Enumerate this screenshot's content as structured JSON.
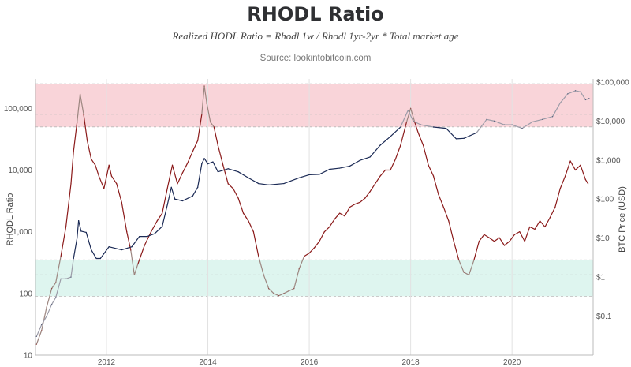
{
  "chart_data": {
    "type": "line",
    "title": "RHODL Ratio",
    "subtitle": "Realized HODL Ratio = Rhodl 1w / Rhodl 1yr-2yr * Total market age",
    "source": "Source: lookintobitcoin.com",
    "ylabel_left": "RHODL Ratio",
    "ylabel_right": "BTC Price (USD)",
    "x_ticks": [
      "2012",
      "2014",
      "2016",
      "2018",
      "2020"
    ],
    "x_range": [
      2010.6,
      2021.6
    ],
    "left_axis": {
      "scale": "log",
      "ylim": [
        10,
        300000
      ],
      "ticks": [
        10,
        100,
        1000,
        10000,
        100000
      ],
      "tick_labels": [
        "10",
        "100",
        "1,000",
        "10,000",
        "100,000"
      ]
    },
    "right_axis": {
      "scale": "log",
      "ylim": [
        0.01,
        120000
      ],
      "ticks": [
        0.1,
        1,
        10,
        100,
        1000,
        10000,
        100000
      ],
      "tick_labels": [
        "$0.1",
        "$1",
        "$10",
        "$100",
        "$1,000",
        "$10,000",
        "$100,000"
      ]
    },
    "bands": [
      {
        "name": "overvalued",
        "y_from": 50000,
        "y_to": 250000,
        "color": "#f8cdd2"
      },
      {
        "name": "undervalued",
        "y_from": 90,
        "y_to": 350,
        "color": "#d8f3ec"
      }
    ],
    "band_lines": [
      50000,
      80000,
      250000,
      90,
      200,
      350
    ],
    "series": [
      {
        "role": "rhodl",
        "axis": "left",
        "color_high": "#8b1a1a",
        "color_low": "#9c8680",
        "points": [
          [
            2010.62,
            15
          ],
          [
            2010.72,
            25
          ],
          [
            2010.82,
            60
          ],
          [
            2010.92,
            120
          ],
          [
            2011.0,
            150
          ],
          [
            2011.1,
            400
          ],
          [
            2011.2,
            1200
          ],
          [
            2011.3,
            6000
          ],
          [
            2011.35,
            20000
          ],
          [
            2011.42,
            60000
          ],
          [
            2011.48,
            170000
          ],
          [
            2011.55,
            80000
          ],
          [
            2011.62,
            30000
          ],
          [
            2011.7,
            15000
          ],
          [
            2011.78,
            12000
          ],
          [
            2011.85,
            8000
          ],
          [
            2011.95,
            5000
          ],
          [
            2012.05,
            12000
          ],
          [
            2012.1,
            8000
          ],
          [
            2012.2,
            6000
          ],
          [
            2012.3,
            3000
          ],
          [
            2012.4,
            1000
          ],
          [
            2012.48,
            500
          ],
          [
            2012.55,
            200
          ],
          [
            2012.62,
            300
          ],
          [
            2012.75,
            600
          ],
          [
            2012.88,
            1000
          ],
          [
            2013.0,
            1500
          ],
          [
            2013.1,
            2000
          ],
          [
            2013.2,
            5000
          ],
          [
            2013.3,
            12000
          ],
          [
            2013.4,
            6000
          ],
          [
            2013.5,
            9000
          ],
          [
            2013.6,
            13000
          ],
          [
            2013.7,
            20000
          ],
          [
            2013.8,
            30000
          ],
          [
            2013.88,
            80000
          ],
          [
            2013.93,
            230000
          ],
          [
            2013.98,
            120000
          ],
          [
            2014.05,
            60000
          ],
          [
            2014.12,
            50000
          ],
          [
            2014.2,
            25000
          ],
          [
            2014.3,
            12000
          ],
          [
            2014.4,
            6000
          ],
          [
            2014.5,
            5000
          ],
          [
            2014.6,
            3500
          ],
          [
            2014.7,
            2000
          ],
          [
            2014.8,
            1500
          ],
          [
            2014.9,
            1000
          ],
          [
            2015.0,
            400
          ],
          [
            2015.1,
            200
          ],
          [
            2015.2,
            120
          ],
          [
            2015.3,
            100
          ],
          [
            2015.4,
            92
          ],
          [
            2015.5,
            100
          ],
          [
            2015.6,
            110
          ],
          [
            2015.7,
            120
          ],
          [
            2015.8,
            250
          ],
          [
            2015.9,
            400
          ],
          [
            2016.0,
            450
          ],
          [
            2016.1,
            550
          ],
          [
            2016.2,
            700
          ],
          [
            2016.3,
            1000
          ],
          [
            2016.4,
            1200
          ],
          [
            2016.5,
            1600
          ],
          [
            2016.6,
            2000
          ],
          [
            2016.7,
            1800
          ],
          [
            2016.8,
            2500
          ],
          [
            2016.9,
            2800
          ],
          [
            2017.0,
            3000
          ],
          [
            2017.1,
            3500
          ],
          [
            2017.2,
            4500
          ],
          [
            2017.3,
            6000
          ],
          [
            2017.4,
            8000
          ],
          [
            2017.5,
            10000
          ],
          [
            2017.6,
            10000
          ],
          [
            2017.7,
            15000
          ],
          [
            2017.8,
            25000
          ],
          [
            2017.92,
            60000
          ],
          [
            2018.0,
            100000
          ],
          [
            2018.08,
            60000
          ],
          [
            2018.15,
            40000
          ],
          [
            2018.25,
            25000
          ],
          [
            2018.35,
            12000
          ],
          [
            2018.45,
            8000
          ],
          [
            2018.55,
            4000
          ],
          [
            2018.65,
            2500
          ],
          [
            2018.75,
            1500
          ],
          [
            2018.85,
            700
          ],
          [
            2018.95,
            350
          ],
          [
            2019.05,
            220
          ],
          [
            2019.15,
            200
          ],
          [
            2019.25,
            350
          ],
          [
            2019.35,
            700
          ],
          [
            2019.45,
            900
          ],
          [
            2019.55,
            800
          ],
          [
            2019.65,
            700
          ],
          [
            2019.75,
            800
          ],
          [
            2019.85,
            600
          ],
          [
            2019.95,
            700
          ],
          [
            2020.05,
            900
          ],
          [
            2020.15,
            1000
          ],
          [
            2020.25,
            700
          ],
          [
            2020.35,
            1200
          ],
          [
            2020.45,
            1100
          ],
          [
            2020.55,
            1500
          ],
          [
            2020.65,
            1200
          ],
          [
            2020.75,
            1700
          ],
          [
            2020.85,
            2500
          ],
          [
            2020.95,
            5000
          ],
          [
            2021.05,
            8000
          ],
          [
            2021.15,
            14000
          ],
          [
            2021.25,
            10000
          ],
          [
            2021.35,
            12000
          ],
          [
            2021.45,
            7000
          ],
          [
            2021.5,
            6000
          ]
        ]
      },
      {
        "role": "price",
        "axis": "right",
        "color_high": "#1b2a55",
        "color_low": "#9c9ca8",
        "points": [
          [
            2010.62,
            0.03
          ],
          [
            2010.72,
            0.06
          ],
          [
            2010.82,
            0.1
          ],
          [
            2010.92,
            0.2
          ],
          [
            2011.0,
            0.3
          ],
          [
            2011.1,
            0.9
          ],
          [
            2011.2,
            0.9
          ],
          [
            2011.3,
            1
          ],
          [
            2011.35,
            3
          ],
          [
            2011.42,
            10
          ],
          [
            2011.45,
            28
          ],
          [
            2011.5,
            15
          ],
          [
            2011.6,
            14
          ],
          [
            2011.7,
            5
          ],
          [
            2011.8,
            3
          ],
          [
            2011.88,
            3
          ],
          [
            2011.95,
            4
          ],
          [
            2012.05,
            6
          ],
          [
            2012.3,
            5
          ],
          [
            2012.5,
            6
          ],
          [
            2012.65,
            11
          ],
          [
            2012.8,
            11
          ],
          [
            2012.95,
            13
          ],
          [
            2013.1,
            20
          ],
          [
            2013.2,
            70
          ],
          [
            2013.28,
            200
          ],
          [
            2013.35,
            100
          ],
          [
            2013.5,
            90
          ],
          [
            2013.7,
            120
          ],
          [
            2013.8,
            200
          ],
          [
            2013.88,
            800
          ],
          [
            2013.93,
            1100
          ],
          [
            2014.0,
            800
          ],
          [
            2014.1,
            900
          ],
          [
            2014.2,
            500
          ],
          [
            2014.4,
            600
          ],
          [
            2014.6,
            500
          ],
          [
            2014.8,
            350
          ],
          [
            2015.0,
            250
          ],
          [
            2015.2,
            230
          ],
          [
            2015.5,
            250
          ],
          [
            2015.8,
            350
          ],
          [
            2016.0,
            420
          ],
          [
            2016.2,
            430
          ],
          [
            2016.4,
            580
          ],
          [
            2016.6,
            620
          ],
          [
            2016.8,
            700
          ],
          [
            2017.0,
            980
          ],
          [
            2017.2,
            1200
          ],
          [
            2017.4,
            2400
          ],
          [
            2017.6,
            4000
          ],
          [
            2017.8,
            7000
          ],
          [
            2017.95,
            19000
          ],
          [
            2018.05,
            10000
          ],
          [
            2018.2,
            8000
          ],
          [
            2018.45,
            7000
          ],
          [
            2018.7,
            6500
          ],
          [
            2018.9,
            3500
          ],
          [
            2019.05,
            3600
          ],
          [
            2019.3,
            5000
          ],
          [
            2019.5,
            11000
          ],
          [
            2019.65,
            10000
          ],
          [
            2019.85,
            8000
          ],
          [
            2020.0,
            8000
          ],
          [
            2020.2,
            6500
          ],
          [
            2020.4,
            9500
          ],
          [
            2020.6,
            11000
          ],
          [
            2020.8,
            13000
          ],
          [
            2020.95,
            29000
          ],
          [
            2021.1,
            50000
          ],
          [
            2021.25,
            60000
          ],
          [
            2021.35,
            56000
          ],
          [
            2021.45,
            35000
          ],
          [
            2021.52,
            38000
          ]
        ]
      }
    ]
  }
}
